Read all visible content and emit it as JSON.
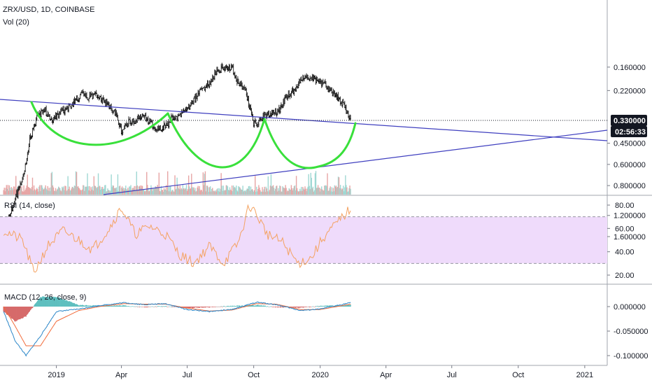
{
  "colors": {
    "background": "#ffffff",
    "candle": "#000000",
    "cup_curve": "#39e03b",
    "trendline": "#3f3fbf",
    "rsi_line": "#f4a261",
    "rsi_band": "#efdbfb",
    "macd_line": "#2a86c8",
    "signal_line": "#f26b3a",
    "hist_pos": "#5fbfbf",
    "hist_neg": "#d66a6a",
    "volume_pos": "#9fd8d3",
    "volume_neg": "#e7a5a5",
    "badge": "#131722"
  },
  "header": {
    "symbol": "ZRX/USD, 1D, COINBASE",
    "volume_label": "Vol (20)"
  },
  "panels": {
    "rsi_label": "RSI (14, close)",
    "macd_label": "MACD (12, 26, close, 9)"
  },
  "badges": {
    "price": "0.330000",
    "countdown": "02:56:33"
  },
  "chart_data": [
    {
      "type": "candlestick",
      "title": "ZRX/USD, 1D, COINBASE",
      "y_scale": "log",
      "y_ticks": [
        "1.600000",
        "1.200000",
        "0.800000",
        "0.600000",
        "0.450000",
        "0.220000",
        "0.160000"
      ],
      "x_ticks": [
        "2019",
        "Apr",
        "Jul",
        "Oct",
        "2020",
        "Apr",
        "Jul",
        "Oct",
        "2021"
      ],
      "last_price": 0.33,
      "close_series": {
        "dates": [
          "2018-10-20",
          "2018-11-05",
          "2018-11-15",
          "2018-11-25",
          "2018-12-05",
          "2018-12-15",
          "2018-12-25",
          "2019-01-05",
          "2019-01-15",
          "2019-01-25",
          "2019-02-05",
          "2019-02-15",
          "2019-02-25",
          "2019-03-10",
          "2019-03-25",
          "2019-04-01",
          "2019-04-10",
          "2019-04-20",
          "2019-05-01",
          "2019-05-10",
          "2019-05-20",
          "2019-06-01",
          "2019-06-10",
          "2019-06-20",
          "2019-07-01",
          "2019-07-10",
          "2019-07-20",
          "2019-08-01",
          "2019-08-10",
          "2019-08-20",
          "2019-09-01",
          "2019-09-10",
          "2019-09-20",
          "2019-10-01",
          "2019-10-05",
          "2019-10-15",
          "2019-10-25",
          "2019-11-05",
          "2019-11-15",
          "2019-11-25",
          "2019-12-05",
          "2019-12-15",
          "2019-12-25",
          "2020-01-05",
          "2020-01-15",
          "2020-01-25",
          "2020-02-05",
          "2020-02-12"
        ],
        "values": [
          1.45,
          0.95,
          0.75,
          0.42,
          0.32,
          0.28,
          0.33,
          0.3,
          0.28,
          0.26,
          0.23,
          0.24,
          0.23,
          0.26,
          0.3,
          0.38,
          0.34,
          0.33,
          0.3,
          0.34,
          0.37,
          0.36,
          0.32,
          0.31,
          0.28,
          0.25,
          0.22,
          0.2,
          0.17,
          0.16,
          0.16,
          0.2,
          0.22,
          0.34,
          0.35,
          0.31,
          0.3,
          0.29,
          0.24,
          0.22,
          0.19,
          0.18,
          0.19,
          0.2,
          0.22,
          0.24,
          0.28,
          0.33
        ]
      },
      "volume_label": "Vol (20)"
    },
    {
      "type": "line",
      "title": "RSI (14, close)",
      "y_ticks": [
        "80.00",
        "60.00",
        "40.00",
        "20.00"
      ],
      "band": [
        30,
        70
      ],
      "series": [
        {
          "x": [
            "2018-10-20",
            "2018-11-15",
            "2018-12-01",
            "2018-12-20",
            "2019-01-10",
            "2019-02-01",
            "2019-02-20",
            "2019-03-15",
            "2019-04-01",
            "2019-04-20",
            "2019-05-10",
            "2019-06-01",
            "2019-06-20",
            "2019-07-10",
            "2019-08-01",
            "2019-08-20",
            "2019-09-10",
            "2019-09-25",
            "2019-10-05",
            "2019-10-20",
            "2019-11-10",
            "2019-12-01",
            "2019-12-20",
            "2020-01-05",
            "2020-01-25",
            "2020-02-12"
          ],
          "values": [
            58,
            50,
            22,
            45,
            58,
            50,
            42,
            60,
            78,
            55,
            62,
            55,
            38,
            30,
            45,
            30,
            48,
            80,
            72,
            55,
            48,
            30,
            35,
            52,
            65,
            77
          ]
        }
      ]
    },
    {
      "type": "line",
      "title": "MACD (12, 26, close, 9)",
      "y_ticks": [
        "0.000000",
        "-0.050000",
        "-0.100000"
      ],
      "series": [
        {
          "x": [
            "2018-10-20",
            "2018-11-05",
            "2018-11-20",
            "2018-12-10",
            "2019-01-01",
            "2019-02-01",
            "2019-03-01",
            "2019-04-05",
            "2019-05-01",
            "2019-06-01",
            "2019-07-01",
            "2019-08-01",
            "2019-09-01",
            "2019-10-05",
            "2019-11-01",
            "2019-12-05",
            "2020-01-01",
            "2020-02-12"
          ],
          "values": [
            -0.01,
            -0.07,
            -0.1,
            -0.06,
            -0.01,
            -0.005,
            0.002,
            0.008,
            0.004,
            0.006,
            -0.006,
            -0.01,
            -0.006,
            0.009,
            0.004,
            -0.008,
            -0.005,
            0.008
          ]
        },
        {
          "x": [
            "2018-10-20",
            "2018-11-05",
            "2018-11-20",
            "2018-12-10",
            "2019-01-01",
            "2019-02-01",
            "2019-03-01",
            "2019-04-05",
            "2019-05-01",
            "2019-06-01",
            "2019-07-01",
            "2019-08-01",
            "2019-09-01",
            "2019-10-05",
            "2019-11-01",
            "2019-12-05",
            "2020-01-01",
            "2020-02-12"
          ],
          "values": [
            0.0,
            -0.04,
            -0.08,
            -0.08,
            -0.03,
            -0.008,
            0.0,
            0.006,
            0.005,
            0.005,
            -0.003,
            -0.009,
            -0.007,
            0.006,
            0.005,
            -0.006,
            -0.006,
            0.005
          ]
        }
      ]
    }
  ]
}
